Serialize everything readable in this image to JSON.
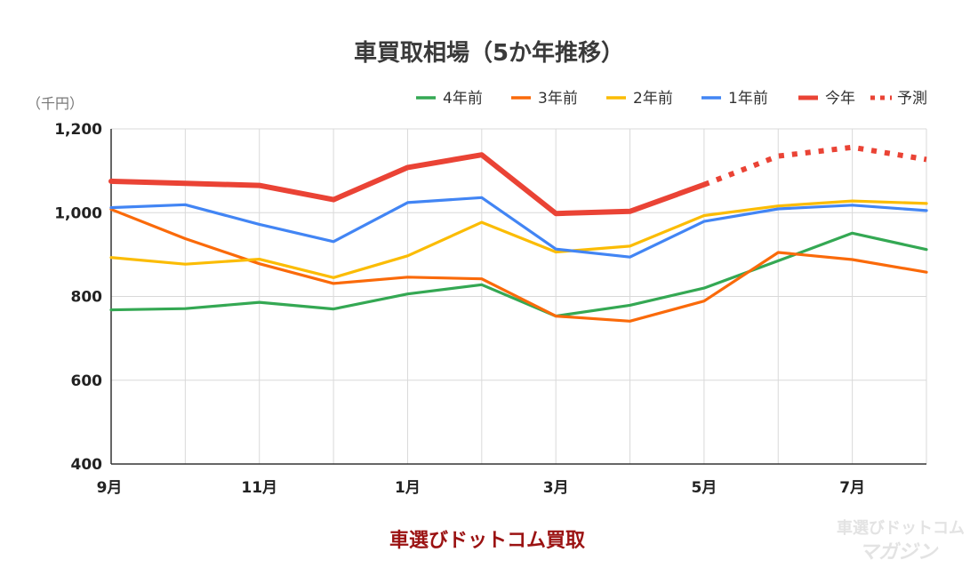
{
  "chart_data": {
    "type": "line",
    "title": "車買取相場（5か年推移）",
    "unit_label": "（千円）",
    "categories": [
      "9月",
      "10月",
      "11月",
      "12月",
      "1月",
      "2月",
      "3月",
      "4月",
      "5月",
      "6月",
      "7月",
      "8月"
    ],
    "x_tick_labels": [
      "9月",
      "11月",
      "1月",
      "3月",
      "5月",
      "7月"
    ],
    "y_tick_labels": [
      "1,200",
      "1,000",
      "800",
      "600",
      "400"
    ],
    "ylim": [
      400,
      1200
    ],
    "grid": true,
    "legend_position": "top-right",
    "series": [
      {
        "name": "4年前",
        "color": "#34a853",
        "values": [
          768,
          771,
          786,
          770,
          806,
          828,
          753,
          779,
          820,
          885,
          951,
          912
        ]
      },
      {
        "name": "3年前",
        "color": "#fa6a0a",
        "values": [
          1008,
          938,
          878,
          831,
          846,
          842,
          753,
          741,
          789,
          905,
          888,
          858
        ]
      },
      {
        "name": "2年前",
        "color": "#fbbc04",
        "values": [
          893,
          877,
          889,
          845,
          897,
          977,
          906,
          920,
          993,
          1016,
          1028,
          1022
        ]
      },
      {
        "name": "1年前",
        "color": "#4285f4",
        "values": [
          1012,
          1019,
          972,
          931,
          1024,
          1036,
          913,
          894,
          979,
          1009,
          1018,
          1005
        ]
      },
      {
        "name": "今年",
        "color": "#ea4335",
        "values": [
          1075,
          1070,
          1065,
          1031,
          1108,
          1138,
          998,
          1003,
          1067,
          null,
          null,
          null
        ]
      },
      {
        "name": "予測",
        "color": "#ea4335",
        "dashed": true,
        "values": [
          null,
          null,
          null,
          null,
          null,
          null,
          null,
          null,
          1067,
          1135,
          1156,
          1127
        ]
      }
    ]
  },
  "footer": {
    "source": "車選びドットコム買取",
    "watermark_line1": "車選びドットコム",
    "watermark_line2": "マガジン"
  }
}
